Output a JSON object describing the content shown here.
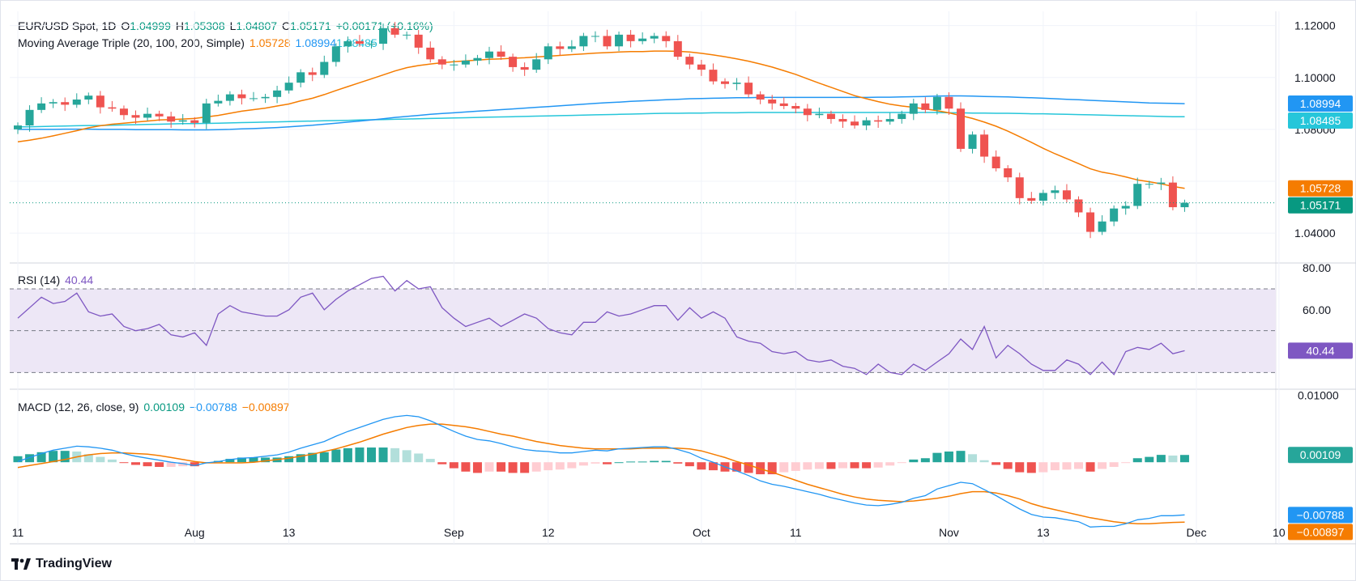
{
  "header": {
    "symbol": "EUR/USD Spot, 1D",
    "open_label": "O",
    "open": "1.04999",
    "high_label": "H",
    "high": "1.05308",
    "low_label": "L",
    "low": "1.04807",
    "close_label": "C",
    "close": "1.05171",
    "change": "+0.00171 (+0.16%)"
  },
  "ma_legend": {
    "label": "Moving Average Triple (20, 100, 200, Simple)",
    "v20": "1.05728",
    "v100": "1.08994",
    "v200": "1.08485"
  },
  "rsi_legend": {
    "label": "RSI (14)",
    "value": "40.44"
  },
  "macd_legend": {
    "label": "MACD (12, 26, close, 9)",
    "hist": "0.00109",
    "macd": "−0.00788",
    "signal": "−0.00897"
  },
  "footer": {
    "brand": "TradingView"
  },
  "colors": {
    "up": "#26a69a",
    "down": "#ef5350",
    "ma20": "#f57c00",
    "ma100": "#2196f3",
    "ma200": "#26c6da",
    "rsi": "#7e57c2",
    "rsi_band": "#ede7f6",
    "macd": "#2196f3",
    "signal": "#f57c00",
    "hist_up_strong": "#26a69a",
    "hist_up_weak": "#b2dfdb",
    "hist_down_strong": "#ef5350",
    "hist_down_weak": "#ffcdd2",
    "close_line": "#089981"
  },
  "chart_data": [
    {
      "type": "candlestick",
      "title": "EUR/USD Spot, 1D",
      "x_ticks": [
        "11",
        "Aug",
        "13",
        "Sep",
        "12",
        "Oct",
        "11",
        "Nov",
        "13",
        "Dec",
        "10"
      ],
      "x_tick_index": [
        0,
        15,
        23,
        37,
        45,
        58,
        66,
        79,
        87,
        100,
        107
      ],
      "y_ticks": [
        "1.12000",
        "1.10000",
        "1.08000",
        "1.04000"
      ],
      "y_tick_values": [
        1.12,
        1.1,
        1.08,
        1.04
      ],
      "ylim": [
        1.0285,
        1.1255
      ],
      "price_labels": [
        {
          "text": "1.08994",
          "value": 1.08994,
          "color": "#2196f3"
        },
        {
          "text": "1.08485",
          "value": 1.08485,
          "color": "#26c6da"
        },
        {
          "text": "1.05728",
          "value": 1.05728,
          "color": "#f57c00"
        },
        {
          "text": "1.05171",
          "value": 1.05171,
          "color": "#089981"
        }
      ],
      "closes": [
        1.0815,
        1.0875,
        1.09,
        1.0905,
        1.0895,
        1.0915,
        1.093,
        1.0885,
        1.088,
        1.0855,
        1.0845,
        1.086,
        1.085,
        1.083,
        1.0835,
        1.0825,
        1.09,
        1.091,
        1.0935,
        1.092,
        1.092,
        1.0925,
        1.095,
        1.098,
        1.102,
        1.101,
        1.106,
        1.112,
        1.114,
        1.113,
        1.113,
        1.119,
        1.1165,
        1.1165,
        1.1115,
        1.107,
        1.105,
        1.105,
        1.1065,
        1.1075,
        1.11,
        1.108,
        1.104,
        1.103,
        1.107,
        1.112,
        1.111,
        1.112,
        1.116,
        1.116,
        1.112,
        1.1165,
        1.114,
        1.115,
        1.116,
        1.114,
        1.108,
        1.105,
        1.103,
        1.0985,
        1.0975,
        1.098,
        1.0935,
        1.0915,
        1.09,
        1.089,
        1.088,
        1.0855,
        1.086,
        1.084,
        1.083,
        1.0815,
        1.0835,
        1.083,
        1.084,
        1.086,
        1.09,
        1.0875,
        1.0925,
        1.088,
        1.0725,
        1.078,
        1.0695,
        1.065,
        1.0615,
        1.0535,
        1.0525,
        1.0555,
        1.0565,
        1.053,
        1.048,
        1.0405,
        1.0445,
        1.0495,
        1.0505,
        1.059,
        1.059,
        1.0595,
        1.05,
        1.0517
      ],
      "ma20": [
        1.0752,
        1.0758,
        1.0766,
        1.0775,
        1.0785,
        1.0795,
        1.0806,
        1.0814,
        1.082,
        1.0824,
        1.0828,
        1.0832,
        1.0836,
        1.0838,
        1.084,
        1.0842,
        1.0848,
        1.0854,
        1.0862,
        1.087,
        1.0876,
        1.0882,
        1.089,
        1.0898,
        1.091,
        1.092,
        1.0934,
        1.095,
        1.0965,
        1.098,
        1.0995,
        1.101,
        1.1025,
        1.1038,
        1.1046,
        1.1052,
        1.1057,
        1.1061,
        1.1064,
        1.1067,
        1.107,
        1.1072,
        1.1074,
        1.1076,
        1.1079,
        1.1082,
        1.1085,
        1.1088,
        1.1091,
        1.1094,
        1.1096,
        1.1098,
        1.11,
        1.11,
        1.1102,
        1.1102,
        1.1101,
        1.1098,
        1.1093,
        1.1087,
        1.108,
        1.1072,
        1.1063,
        1.1052,
        1.104,
        1.1026,
        1.1012,
        1.0995,
        1.0978,
        1.0962,
        1.0946,
        1.093,
        1.0918,
        1.0907,
        1.0897,
        1.089,
        1.0885,
        1.0879,
        1.0872,
        1.0864,
        1.0853,
        1.0842,
        1.0828,
        1.0812,
        1.0793,
        1.0772,
        1.075,
        1.0727,
        1.0706,
        1.0687,
        1.0668,
        1.0648,
        1.0635,
        1.0627,
        1.0617,
        1.0605,
        1.0598,
        1.059,
        1.058,
        1.0573
      ],
      "ma100": [
        1.08,
        1.08,
        1.08,
        1.08,
        1.0801,
        1.0801,
        1.0801,
        1.08,
        1.08,
        1.08,
        1.0799,
        1.0799,
        1.0799,
        1.0799,
        1.0798,
        1.0798,
        1.0798,
        1.0799,
        1.08,
        1.0802,
        1.0803,
        1.0805,
        1.0807,
        1.081,
        1.0813,
        1.0816,
        1.082,
        1.0824,
        1.0828,
        1.0832,
        1.0836,
        1.0841,
        1.0846,
        1.085,
        1.0854,
        1.0858,
        1.0861,
        1.0864,
        1.0867,
        1.087,
        1.0873,
        1.0876,
        1.0879,
        1.0882,
        1.0885,
        1.0888,
        1.0891,
        1.0894,
        1.0897,
        1.09,
        1.0903,
        1.0905,
        1.0908,
        1.091,
        1.0912,
        1.0914,
        1.0916,
        1.0918,
        1.0919,
        1.092,
        1.0921,
        1.0922,
        1.0922,
        1.0923,
        1.0923,
        1.0923,
        1.0923,
        1.0923,
        1.0923,
        1.0923,
        1.0923,
        1.0923,
        1.0923,
        1.0924,
        1.0924,
        1.0925,
        1.0926,
        1.0927,
        1.0928,
        1.0929,
        1.0929,
        1.0928,
        1.0927,
        1.0926,
        1.0925,
        1.0923,
        1.0922,
        1.092,
        1.0918,
        1.0916,
        1.0914,
        1.0912,
        1.091,
        1.0908,
        1.0906,
        1.0904,
        1.0902,
        1.0901,
        1.09,
        1.0899
      ],
      "ma200": [
        1.081,
        1.081,
        1.0811,
        1.0812,
        1.0813,
        1.0814,
        1.0815,
        1.0815,
        1.0816,
        1.0817,
        1.0818,
        1.0819,
        1.082,
        1.0821,
        1.0822,
        1.0822,
        1.0823,
        1.0824,
        1.0825,
        1.0826,
        1.0827,
        1.0828,
        1.0829,
        1.083,
        1.0831,
        1.0832,
        1.0833,
        1.0834,
        1.0835,
        1.0836,
        1.0837,
        1.0838,
        1.0839,
        1.084,
        1.0841,
        1.0842,
        1.0843,
        1.0844,
        1.0845,
        1.0846,
        1.0847,
        1.0848,
        1.0849,
        1.085,
        1.0851,
        1.0852,
        1.0853,
        1.0854,
        1.0855,
        1.0856,
        1.0857,
        1.0858,
        1.0859,
        1.086,
        1.0861,
        1.0862,
        1.0862,
        1.0863,
        1.0863,
        1.0864,
        1.0864,
        1.0864,
        1.0865,
        1.0865,
        1.0865,
        1.0865,
        1.0865,
        1.0865,
        1.0865,
        1.0865,
        1.0865,
        1.0865,
        1.0865,
        1.0865,
        1.0865,
        1.0865,
        1.0865,
        1.0865,
        1.0865,
        1.0864,
        1.0864,
        1.0863,
        1.0863,
        1.0862,
        1.0862,
        1.0861,
        1.086,
        1.086,
        1.0859,
        1.0858,
        1.0857,
        1.0856,
        1.0855,
        1.0854,
        1.0853,
        1.0852,
        1.0851,
        1.085,
        1.0849,
        1.0849
      ]
    },
    {
      "type": "line",
      "title": "RSI (14)",
      "y_ticks": [
        "80.00",
        "60.00"
      ],
      "y_tick_values": [
        80,
        60
      ],
      "ylim": [
        22,
        82
      ],
      "bands": [
        30,
        50,
        70
      ],
      "value_label": "40.44",
      "values": [
        56,
        61,
        66,
        63,
        64,
        68,
        59,
        57,
        58,
        52,
        50,
        51,
        53,
        48,
        47,
        49,
        43,
        58,
        62,
        59,
        58,
        57,
        57,
        60,
        66,
        68,
        60,
        65,
        69,
        72,
        75,
        76,
        69,
        74,
        70,
        71,
        61,
        56,
        52,
        54,
        56,
        52,
        55,
        58,
        56,
        51,
        49,
        48,
        54,
        54,
        59,
        57,
        58,
        60,
        62,
        62,
        55,
        61,
        56,
        59,
        56,
        47,
        45,
        44,
        40,
        39,
        40,
        36,
        35,
        36,
        33,
        32,
        29,
        34,
        30,
        29,
        34,
        31,
        35,
        39,
        46,
        41,
        52,
        37,
        43,
        39,
        34,
        31,
        31,
        36,
        34,
        29,
        35,
        29,
        40,
        42,
        41,
        44,
        39,
        40.44
      ]
    },
    {
      "type": "bar+line",
      "title": "MACD (12, 26, close, 9)",
      "y_ticks": [
        "0.01000"
      ],
      "y_tick_values": [
        0.01
      ],
      "ylim": [
        -0.0122,
        0.0108
      ],
      "value_labels": [
        {
          "text": "0.00109",
          "value": 0.00109,
          "color": "#26a69a"
        },
        {
          "text": "−0.00788",
          "value": -0.00788,
          "color": "#2196f3"
        },
        {
          "text": "−0.00897",
          "value": -0.00897,
          "color": "#f57c00"
        }
      ],
      "macd": [
        0.0001,
        0.0007,
        0.0013,
        0.0018,
        0.0021,
        0.0024,
        0.0023,
        0.0021,
        0.0018,
        0.0013,
        0.0009,
        0.0006,
        0.0003,
        0.0,
        -0.0002,
        -0.0005,
        -0.0001,
        0.0001,
        0.0004,
        0.0006,
        0.0007,
        0.0009,
        0.0011,
        0.0015,
        0.0021,
        0.0026,
        0.0031,
        0.0039,
        0.0046,
        0.0052,
        0.0058,
        0.0064,
        0.0068,
        0.007,
        0.0068,
        0.0062,
        0.0054,
        0.0046,
        0.0039,
        0.0034,
        0.0032,
        0.0028,
        0.0023,
        0.0019,
        0.0017,
        0.0016,
        0.0014,
        0.0014,
        0.0016,
        0.0018,
        0.0017,
        0.002,
        0.0021,
        0.0022,
        0.0023,
        0.0023,
        0.0019,
        0.0014,
        0.0006,
        0.0,
        -0.0007,
        -0.0013,
        -0.002,
        -0.0028,
        -0.0033,
        -0.0036,
        -0.004,
        -0.0044,
        -0.0048,
        -0.0053,
        -0.0057,
        -0.0061,
        -0.0064,
        -0.0065,
        -0.0063,
        -0.006,
        -0.0054,
        -0.005,
        -0.004,
        -0.0035,
        -0.003,
        -0.0032,
        -0.0041,
        -0.005,
        -0.006,
        -0.007,
        -0.0078,
        -0.0082,
        -0.0083,
        -0.0086,
        -0.0089,
        -0.0097,
        -0.0096,
        -0.0096,
        -0.0092,
        -0.0086,
        -0.0084,
        -0.008,
        -0.008,
        -0.00788
      ],
      "signal": [
        -0.0008,
        -0.0005,
        -0.0002,
        0.0001,
        0.0004,
        0.0008,
        0.0011,
        0.0013,
        0.0014,
        0.0014,
        0.0013,
        0.0012,
        0.001,
        0.0007,
        0.0004,
        0.0001,
        -0.0001,
        -0.0001,
        -0.0001,
        -0.0001,
        0.0,
        0.0002,
        0.0004,
        0.0006,
        0.0009,
        0.0012,
        0.0016,
        0.002,
        0.0025,
        0.003,
        0.0036,
        0.0042,
        0.0047,
        0.0052,
        0.0055,
        0.0057,
        0.0057,
        0.0055,
        0.0053,
        0.005,
        0.0046,
        0.0042,
        0.0039,
        0.0035,
        0.0031,
        0.0028,
        0.0025,
        0.0023,
        0.0021,
        0.002,
        0.002,
        0.002,
        0.002,
        0.0021,
        0.0021,
        0.0021,
        0.0021,
        0.002,
        0.0017,
        0.0012,
        0.0007,
        0.0001,
        -0.0004,
        -0.001,
        -0.0015,
        -0.0021,
        -0.0027,
        -0.0033,
        -0.0038,
        -0.0043,
        -0.0048,
        -0.0052,
        -0.0055,
        -0.0057,
        -0.0058,
        -0.0059,
        -0.0058,
        -0.0056,
        -0.0054,
        -0.0051,
        -0.0047,
        -0.0044,
        -0.0044,
        -0.0046,
        -0.005,
        -0.0055,
        -0.0062,
        -0.0067,
        -0.0071,
        -0.0075,
        -0.0079,
        -0.0083,
        -0.0086,
        -0.0089,
        -0.0091,
        -0.0092,
        -0.0092,
        -0.0091,
        -0.009,
        -0.00897
      ]
    }
  ]
}
